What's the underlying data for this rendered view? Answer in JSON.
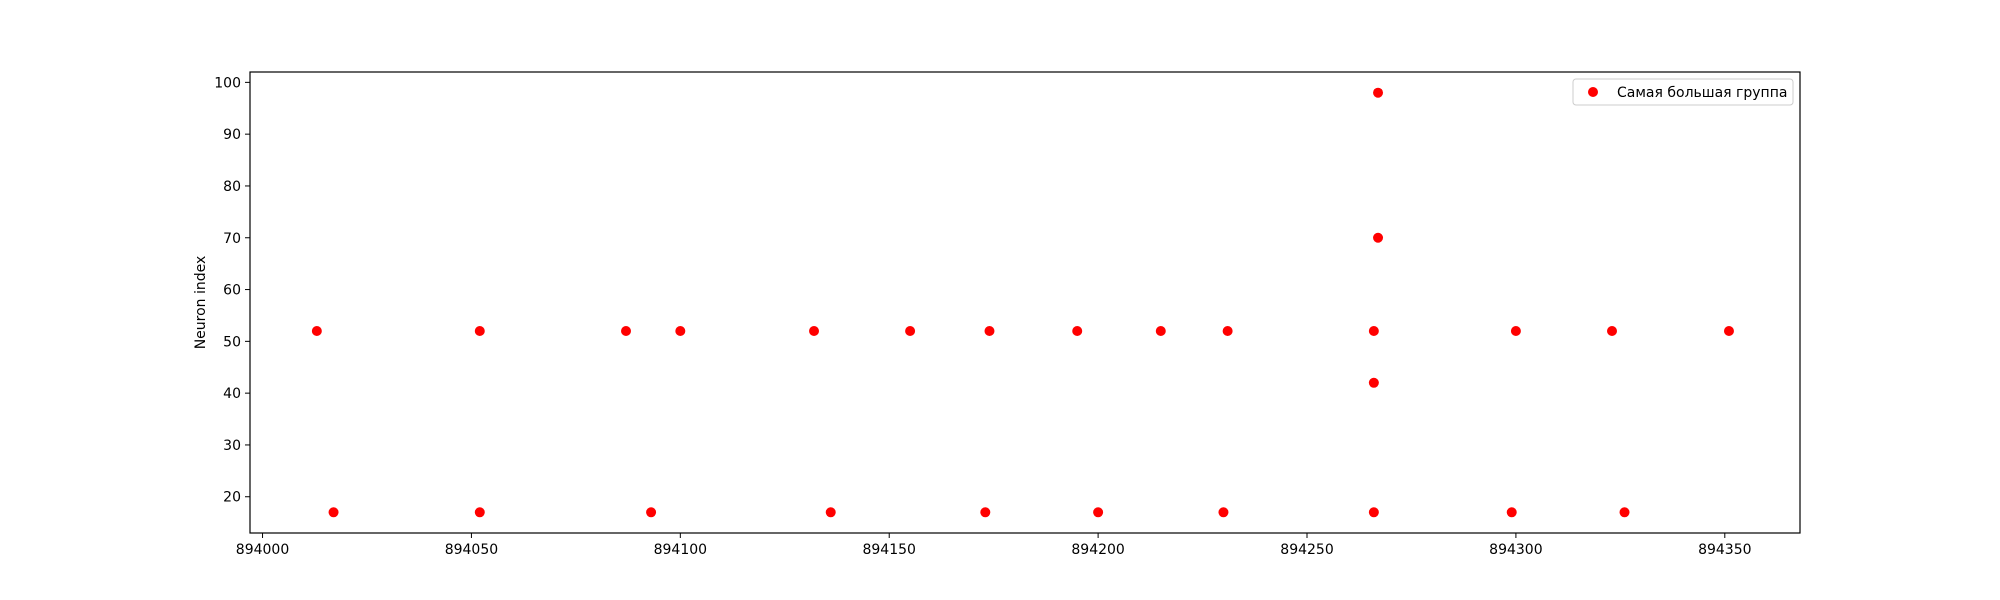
{
  "chart_data": {
    "type": "scatter",
    "title": "",
    "xlabel": "",
    "ylabel": "Neuron index",
    "xlim": [
      893997,
      894368
    ],
    "ylim": [
      13,
      102
    ],
    "xticks": [
      894000,
      894050,
      894100,
      894150,
      894200,
      894250,
      894300,
      894350
    ],
    "yticks": [
      20,
      30,
      40,
      50,
      60,
      70,
      80,
      90,
      100
    ],
    "grid": false,
    "legend_position": "top-right",
    "series": [
      {
        "name": "Самая большая группа",
        "color": "#ff0000",
        "marker": "circle",
        "points": [
          {
            "x": 894013,
            "y": 52
          },
          {
            "x": 894017,
            "y": 17
          },
          {
            "x": 894052,
            "y": 52
          },
          {
            "x": 894052,
            "y": 17
          },
          {
            "x": 894087,
            "y": 52
          },
          {
            "x": 894093,
            "y": 17
          },
          {
            "x": 894100,
            "y": 52
          },
          {
            "x": 894132,
            "y": 52
          },
          {
            "x": 894136,
            "y": 17
          },
          {
            "x": 894155,
            "y": 52
          },
          {
            "x": 894173,
            "y": 17
          },
          {
            "x": 894174,
            "y": 52
          },
          {
            "x": 894195,
            "y": 52
          },
          {
            "x": 894200,
            "y": 17
          },
          {
            "x": 894215,
            "y": 52
          },
          {
            "x": 894230,
            "y": 17
          },
          {
            "x": 894231,
            "y": 52
          },
          {
            "x": 894266,
            "y": 42
          },
          {
            "x": 894266,
            "y": 52
          },
          {
            "x": 894266,
            "y": 17
          },
          {
            "x": 894267,
            "y": 98
          },
          {
            "x": 894267,
            "y": 70
          },
          {
            "x": 894299,
            "y": 17
          },
          {
            "x": 894300,
            "y": 52
          },
          {
            "x": 894323,
            "y": 52
          },
          {
            "x": 894326,
            "y": 17
          },
          {
            "x": 894351,
            "y": 52
          }
        ]
      }
    ]
  }
}
